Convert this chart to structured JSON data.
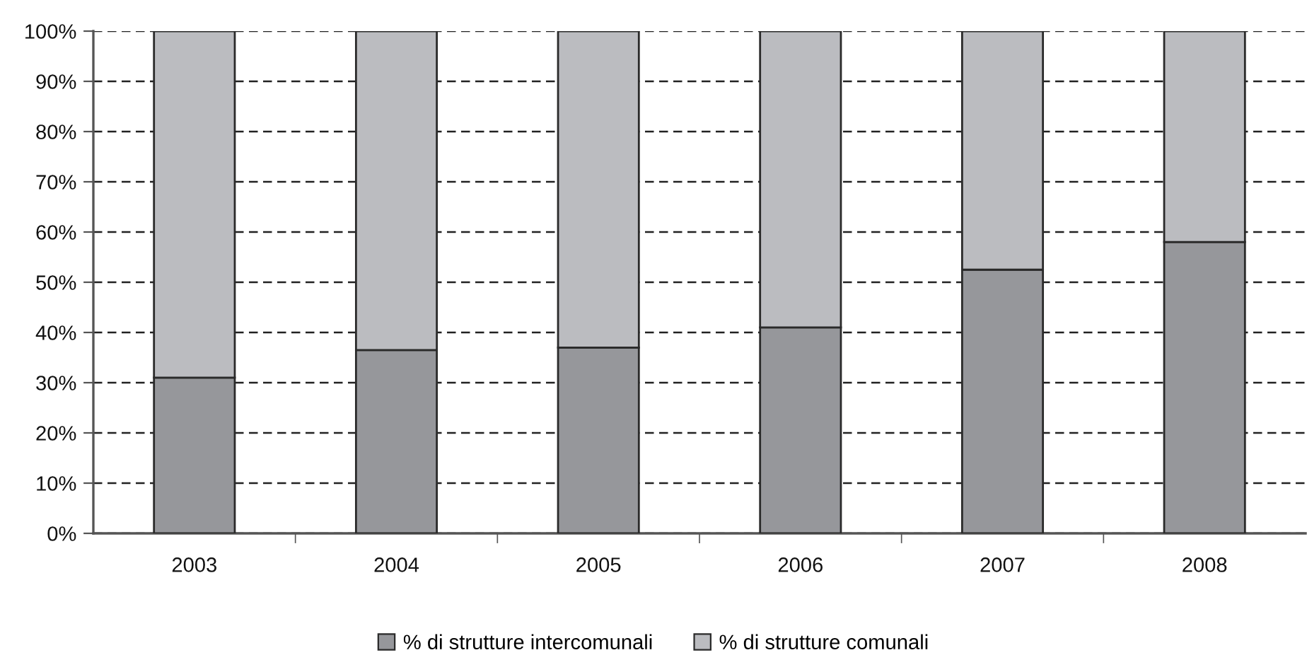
{
  "chart_data": {
    "type": "bar",
    "stacked": true,
    "categories": [
      "2003",
      "2004",
      "2005",
      "2006",
      "2007",
      "2008"
    ],
    "series": [
      {
        "name": "% di strutture intercomunali",
        "color": "#96979b",
        "values": [
          31,
          36.5,
          37,
          41,
          52.5,
          58
        ]
      },
      {
        "name": "% di strutture comunali",
        "color": "#bbbcc0",
        "values": [
          69,
          63.5,
          63,
          59,
          47.5,
          42
        ]
      }
    ],
    "ylim": [
      0,
      100
    ],
    "yticks": [
      {
        "value": 0,
        "label": "0%"
      },
      {
        "value": 10,
        "label": "10%"
      },
      {
        "value": 20,
        "label": "20%"
      },
      {
        "value": 30,
        "label": "30%"
      },
      {
        "value": 40,
        "label": "40%"
      },
      {
        "value": 50,
        "label": "50%"
      },
      {
        "value": 60,
        "label": "60%"
      },
      {
        "value": 70,
        "label": "70%"
      },
      {
        "value": 80,
        "label": "80%"
      },
      {
        "value": 90,
        "label": "90%"
      },
      {
        "value": 100,
        "label": "100%"
      }
    ],
    "grid": "y",
    "legend": "bottom"
  }
}
